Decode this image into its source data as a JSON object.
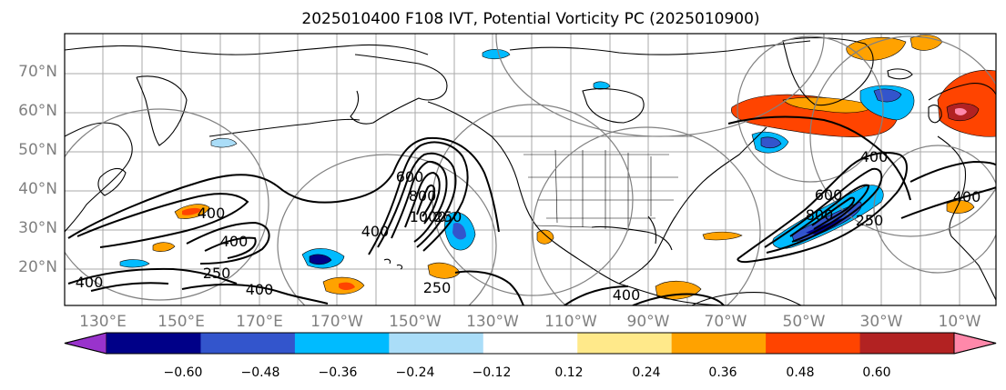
{
  "title": "2025010400 F108 IVT, Potential Vorticity PC (2025010900)",
  "colors": {
    "levels": [
      "#9933cc",
      "#000088",
      "#3355cc",
      "#00bbff",
      "#aaddf8",
      "#ffffff",
      "#ffe98a",
      "#ffa200",
      "#ff4400",
      "#b22222",
      "#ff88aa"
    ],
    "grid": "#aaaaaa",
    "tick_text": "#808080"
  },
  "axes": {
    "lat_labels": [
      "70°N",
      "60°N",
      "50°N",
      "40°N",
      "30°N",
      "20°N"
    ],
    "lon_labels": [
      "130°E",
      "150°E",
      "170°E",
      "170°W",
      "150°W",
      "130°W",
      "110°W",
      "90°W",
      "70°W",
      "50°W",
      "30°W",
      "10°W"
    ]
  },
  "colorbar": {
    "tick_labels": [
      "−0.60",
      "−0.48",
      "−0.36",
      "−0.24",
      "−0.12",
      "0.12",
      "0.24",
      "0.36",
      "0.48",
      "0.60"
    ]
  },
  "ivt_contour_labels": [
    "400",
    "400",
    "400",
    "250",
    "400",
    "400",
    "600",
    "800",
    "1000",
    "250",
    "250",
    "400",
    "400",
    "600",
    "800",
    "250",
    "400"
  ]
}
